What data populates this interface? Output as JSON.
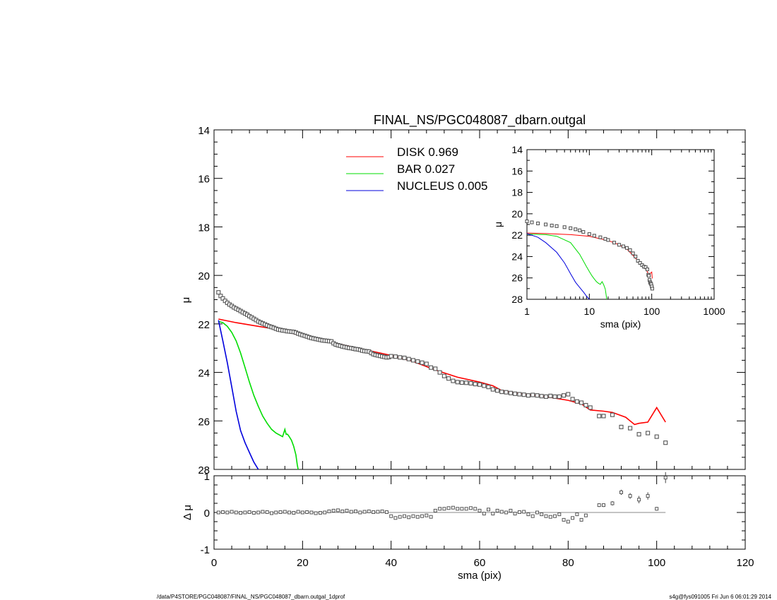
{
  "chart_data": [
    {
      "panel": "main",
      "type": "line",
      "title": "FINAL_NS/PGC048087_dbarn.outgal",
      "ylabel": "μ",
      "xlim": [
        0,
        120
      ],
      "ylim": [
        14,
        28
      ],
      "y_inverted": true,
      "yticks": [
        "14",
        "16",
        "18",
        "20",
        "22",
        "24",
        "26",
        "28"
      ],
      "legend": [
        {
          "name": "DISK",
          "value": "0.969",
          "color": "#ff0000"
        },
        {
          "name": "BAR",
          "value": "0.027",
          "color": "#00dd00"
        },
        {
          "name": "NUCLEUS",
          "value": "0.005",
          "color": "#0000dd"
        }
      ],
      "observed": {
        "x": [
          1,
          1.5,
          2,
          2.5,
          3,
          3.5,
          4,
          4.5,
          5,
          5.5,
          6,
          6.5,
          7,
          7.5,
          8,
          8.5,
          9,
          9.5,
          10,
          10.5,
          11,
          11.5,
          12,
          12.5,
          13,
          13.5,
          14,
          14.5,
          15,
          15.5,
          16,
          16.5,
          17,
          17.5,
          18,
          18.5,
          19,
          19.5,
          20,
          20.5,
          21,
          21.5,
          22,
          22.5,
          23,
          23.5,
          24,
          24.5,
          25,
          25.5,
          26,
          26.5,
          27,
          27.5,
          28,
          28.5,
          29,
          29.5,
          30,
          30.5,
          31,
          31.5,
          32,
          32.5,
          33,
          33.5,
          34,
          34.5,
          35,
          35.5,
          36,
          36.5,
          37,
          37.5,
          38,
          38.5,
          39,
          39.5,
          40,
          41,
          42,
          43,
          44,
          45,
          46,
          47,
          48,
          49,
          50,
          51,
          52,
          53,
          54,
          55,
          56,
          57,
          58,
          59,
          60,
          61,
          62,
          63,
          64,
          65,
          66,
          67,
          68,
          69,
          70,
          71,
          72,
          73,
          74,
          75,
          76,
          77,
          78,
          79,
          80,
          81,
          82,
          83,
          84,
          85,
          87,
          88,
          90,
          92,
          94,
          96,
          98,
          100,
          102
        ],
        "y": [
          20.7,
          20.85,
          20.95,
          21.05,
          21.13,
          21.2,
          21.26,
          21.32,
          21.37,
          21.42,
          21.47,
          21.52,
          21.57,
          21.62,
          21.68,
          21.73,
          21.79,
          21.84,
          21.9,
          21.94,
          21.98,
          22.02,
          22.06,
          22.1,
          22.13,
          22.16,
          22.2,
          22.23,
          22.25,
          22.27,
          22.28,
          22.3,
          22.31,
          22.32,
          22.33,
          22.36,
          22.4,
          22.43,
          22.46,
          22.49,
          22.52,
          22.55,
          22.58,
          22.6,
          22.62,
          22.64,
          22.66,
          22.68,
          22.69,
          22.7,
          22.71,
          22.72,
          22.8,
          22.85,
          22.88,
          22.9,
          22.93,
          22.95,
          22.97,
          22.99,
          23,
          23.02,
          23.04,
          23.05,
          23.07,
          23.1,
          23.12,
          23.13,
          23.14,
          23.2,
          23.25,
          23.28,
          23.3,
          23.32,
          23.34,
          23.36,
          23.38,
          23.37,
          23.33,
          23.35,
          23.38,
          23.4,
          23.45,
          23.5,
          23.55,
          23.6,
          23.65,
          23.8,
          23.85,
          24.0,
          24.15,
          24.25,
          24.35,
          24.4,
          24.42,
          24.43,
          24.45,
          24.48,
          24.5,
          24.55,
          24.6,
          24.7,
          24.75,
          24.8,
          24.82,
          24.85,
          24.88,
          24.9,
          24.92,
          24.95,
          24.93,
          24.95,
          24.98,
          25.0,
          24.97,
          25.0,
          25.0,
          24.95,
          24.9,
          25.1,
          25.2,
          25.25,
          25.35,
          25.45,
          25.8,
          25.8,
          25.75,
          26.25,
          26.3,
          26.55,
          26.5,
          26.65,
          26.9
        ]
      },
      "series": [
        {
          "name": "DISK",
          "color": "#ff0000",
          "x": [
            1,
            5,
            10,
            15,
            20,
            25,
            30,
            35,
            40,
            45,
            50,
            55,
            60,
            63,
            65,
            70,
            75,
            80,
            83,
            85,
            88,
            90,
            93,
            95,
            96,
            98,
            100,
            102
          ],
          "y": [
            21.8,
            21.95,
            22.1,
            22.25,
            22.5,
            22.7,
            22.9,
            23.1,
            23.3,
            23.55,
            23.9,
            24.2,
            24.4,
            24.55,
            24.75,
            24.9,
            25.0,
            25.15,
            25.3,
            25.55,
            25.6,
            25.65,
            25.85,
            26.15,
            26.1,
            26.05,
            25.45,
            26.05
          ]
        },
        {
          "name": "BAR",
          "color": "#00dd00",
          "x": [
            1,
            2,
            3,
            4,
            5,
            6,
            7,
            8,
            9,
            10,
            11,
            12,
            13,
            14,
            15,
            15.5,
            16,
            16.3,
            16.6,
            17,
            17.5,
            18,
            18.5,
            18.8,
            19
          ],
          "y": [
            21.9,
            21.95,
            22.1,
            22.35,
            22.7,
            23.2,
            23.8,
            24.4,
            24.95,
            25.4,
            25.8,
            26.1,
            26.35,
            26.5,
            26.6,
            26.65,
            26.35,
            26.55,
            26.55,
            26.65,
            26.8,
            27.05,
            27.4,
            27.8,
            28.0
          ]
        },
        {
          "name": "NUCLEUS",
          "color": "#0000dd",
          "x": [
            1,
            2,
            3,
            4,
            5,
            6,
            7,
            8,
            9,
            10
          ],
          "y": [
            21.85,
            22.7,
            23.6,
            24.6,
            25.6,
            26.4,
            26.9,
            27.3,
            27.7,
            28.0
          ]
        }
      ]
    },
    {
      "panel": "residual",
      "type": "scatter",
      "xlabel": "sma (pix)",
      "ylabel": "Δ μ",
      "xlim": [
        0,
        120
      ],
      "ylim": [
        -1,
        1
      ],
      "xticks": [
        "0",
        "20",
        "40",
        "60",
        "80",
        "100",
        "120"
      ],
      "yticks": [
        "1",
        "0",
        "-1"
      ],
      "zero_line": true,
      "x": [
        1,
        2,
        3,
        4,
        5,
        6,
        7,
        8,
        9,
        10,
        11,
        12,
        13,
        14,
        15,
        16,
        17,
        18,
        19,
        20,
        21,
        22,
        23,
        24,
        25,
        26,
        27,
        28,
        29,
        30,
        31,
        32,
        33,
        34,
        35,
        36,
        37,
        38,
        39,
        40,
        41,
        42,
        43,
        44,
        45,
        46,
        47,
        48,
        49,
        50,
        51,
        52,
        53,
        54,
        55,
        56,
        57,
        58,
        59,
        60,
        61,
        62,
        63,
        64,
        65,
        66,
        67,
        68,
        69,
        70,
        71,
        72,
        73,
        74,
        75,
        76,
        77,
        78,
        79,
        80,
        81,
        82,
        83,
        84,
        87,
        88,
        90,
        92,
        94,
        96,
        98,
        100,
        102
      ],
      "y": [
        0,
        0.01,
        0,
        0.02,
        0,
        -0.01,
        0,
        0.01,
        -0.01,
        0,
        0.02,
        0.01,
        -0.02,
        0,
        0.01,
        0.02,
        0,
        -0.01,
        0.02,
        0,
        0.01,
        0,
        -0.02,
        -0.01,
        0,
        0.03,
        0.05,
        0.06,
        0.03,
        0.05,
        0.02,
        0.03,
        0,
        0.02,
        0.03,
        0.01,
        0.02,
        0.03,
        0.01,
        -0.1,
        -0.15,
        -0.12,
        -0.1,
        -0.13,
        -0.1,
        -0.12,
        -0.1,
        -0.08,
        -0.12,
        0.05,
        0.1,
        0.1,
        0.12,
        0.13,
        0.1,
        0.1,
        0.1,
        0.12,
        0.1,
        0.05,
        -0.03,
        0.08,
        -0.03,
        0.05,
        0.02,
        0.0,
        0.05,
        -0.03,
        0.01,
        0.02,
        -0.05,
        -0.1,
        0,
        -0.05,
        -0.1,
        -0.12,
        -0.1,
        -0.05,
        -0.2,
        -0.25,
        -0.15,
        -0.05,
        -0.2,
        -0.08,
        0.2,
        0.2,
        0.25,
        0.55,
        0.45,
        0.35,
        0.45,
        0.1,
        0.95
      ],
      "errors": [
        0.01,
        0.01,
        0.01,
        0.01,
        0.01,
        0.01,
        0.01,
        0.01,
        0.01,
        0.01,
        0.01,
        0.01,
        0.01,
        0.01,
        0.01,
        0.01,
        0.01,
        0.01,
        0.01,
        0.01,
        0.01,
        0.01,
        0.01,
        0.01,
        0.01,
        0.01,
        0.01,
        0.01,
        0.01,
        0.01,
        0.01,
        0.01,
        0.01,
        0.01,
        0.01,
        0.01,
        0.01,
        0.01,
        0.01,
        0.01,
        0.01,
        0.01,
        0.01,
        0.01,
        0.01,
        0.01,
        0.01,
        0.01,
        0.01,
        0.01,
        0.01,
        0.01,
        0.01,
        0.01,
        0.01,
        0.01,
        0.01,
        0.01,
        0.01,
        0.01,
        0.01,
        0.01,
        0.01,
        0.01,
        0.01,
        0.01,
        0.01,
        0.01,
        0.01,
        0.01,
        0.01,
        0.01,
        0.01,
        0.01,
        0.01,
        0.01,
        0.01,
        0.01,
        0.01,
        0.02,
        0.02,
        0.02,
        0.03,
        0.03,
        0.05,
        0.05,
        0.06,
        0.07,
        0.08,
        0.1,
        0.1,
        0.05,
        0.15
      ]
    },
    {
      "panel": "inset",
      "type": "line",
      "xlabel": "sma (pix)",
      "ylabel": "μ",
      "xscale": "log",
      "xlim": [
        1,
        1000
      ],
      "ylim": [
        14,
        28
      ],
      "y_inverted": true,
      "xticks": [
        "1",
        "10",
        "100",
        "1000"
      ],
      "yticks": [
        "14",
        "16",
        "18",
        "20",
        "22",
        "24",
        "26",
        "28"
      ],
      "observed": {
        "x": [
          1,
          1.2,
          1.5,
          2,
          2.5,
          3,
          4,
          5,
          6,
          7,
          8,
          10,
          12,
          15,
          18,
          20,
          25,
          30,
          35,
          40,
          45,
          50,
          55,
          60,
          65,
          70,
          75,
          80,
          85,
          88,
          90,
          92,
          94,
          96,
          98,
          100,
          102
        ],
        "y": [
          20.7,
          20.8,
          20.9,
          21.0,
          21.1,
          21.15,
          21.25,
          21.35,
          21.45,
          21.55,
          21.7,
          21.9,
          22.05,
          22.2,
          22.35,
          22.45,
          22.7,
          22.9,
          23.05,
          23.2,
          23.4,
          23.7,
          24.0,
          24.4,
          24.6,
          24.8,
          24.95,
          25.0,
          25.2,
          25.7,
          25.8,
          26.2,
          26.4,
          26.5,
          26.6,
          26.8,
          27.0
        ]
      },
      "series": [
        {
          "name": "DISK",
          "color": "#ff0000",
          "x": [
            1,
            2,
            5,
            10,
            20,
            30,
            40,
            50,
            60,
            70,
            80,
            90,
            100,
            102
          ],
          "y": [
            21.8,
            21.85,
            21.95,
            22.1,
            22.5,
            22.9,
            23.3,
            23.9,
            24.4,
            24.9,
            25.15,
            25.7,
            25.45,
            26.05
          ]
        },
        {
          "name": "BAR",
          "color": "#00dd00",
          "x": [
            1,
            2,
            3,
            5,
            7,
            9,
            10,
            11,
            12,
            13,
            14,
            15,
            16,
            17,
            18,
            19
          ],
          "y": [
            21.9,
            21.95,
            22.1,
            22.7,
            23.8,
            24.95,
            25.4,
            25.8,
            26.1,
            26.35,
            26.5,
            26.6,
            26.35,
            26.65,
            27.05,
            28.0
          ]
        },
        {
          "name": "NUCLEUS",
          "color": "#0000dd",
          "x": [
            1,
            1.5,
            2,
            3,
            4,
            5,
            6,
            7,
            8,
            9,
            10
          ],
          "y": [
            21.85,
            22.2,
            22.7,
            23.6,
            24.6,
            25.6,
            26.4,
            26.9,
            27.3,
            27.7,
            28.0
          ]
        }
      ]
    }
  ],
  "footer": {
    "left": "/data/P4STORE/PGC048087/FINAL_NS/PGC048087_dbarn.outgal_1dprof",
    "right": "s4g@fys091005  Fri Jun  6 06:01:29 2014"
  }
}
